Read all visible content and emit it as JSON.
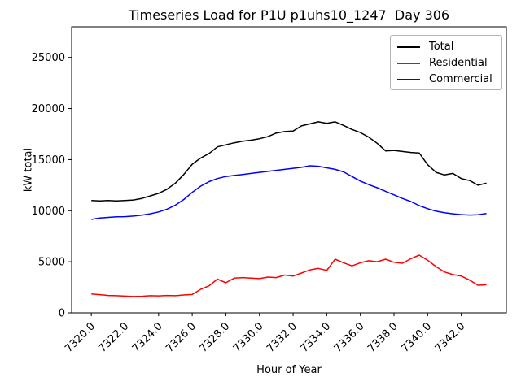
{
  "chart_data": {
    "type": "line",
    "title": "Timeseries Load for P1U p1uhs10_1247  Day 306",
    "xlabel": "Hour of Year",
    "ylabel": "kW total",
    "xlim": [
      7318.83,
      7344.68
    ],
    "ylim": [
      0,
      28000
    ],
    "grid": false,
    "legend_position": "upper right",
    "xticks": [
      {
        "value": 7320,
        "label": "7320.0"
      },
      {
        "value": 7322,
        "label": "7322.0"
      },
      {
        "value": 7324,
        "label": "7324.0"
      },
      {
        "value": 7326,
        "label": "7326.0"
      },
      {
        "value": 7328,
        "label": "7328.0"
      },
      {
        "value": 7330,
        "label": "7330.0"
      },
      {
        "value": 7332,
        "label": "7332.0"
      },
      {
        "value": 7334,
        "label": "7334.0"
      },
      {
        "value": 7336,
        "label": "7336.0"
      },
      {
        "value": 7338,
        "label": "7338.0"
      },
      {
        "value": 7340,
        "label": "7340.0"
      },
      {
        "value": 7342,
        "label": "7342.0"
      }
    ],
    "yticks": [
      {
        "value": 0,
        "label": "0"
      },
      {
        "value": 5000,
        "label": "5000"
      },
      {
        "value": 10000,
        "label": "10000"
      },
      {
        "value": 15000,
        "label": "15000"
      },
      {
        "value": 20000,
        "label": "20000"
      },
      {
        "value": 25000,
        "label": "25000"
      }
    ],
    "x": [
      7320.0,
      7320.5,
      7321.0,
      7321.5,
      7322.0,
      7322.5,
      7323.0,
      7323.5,
      7324.0,
      7324.5,
      7325.0,
      7325.5,
      7326.0,
      7326.5,
      7327.0,
      7327.5,
      7328.0,
      7328.5,
      7329.0,
      7329.5,
      7330.0,
      7330.5,
      7331.0,
      7331.5,
      7332.0,
      7332.5,
      7333.0,
      7333.5,
      7334.0,
      7334.5,
      7335.0,
      7335.5,
      7336.0,
      7336.5,
      7337.0,
      7337.5,
      7338.0,
      7338.5,
      7339.0,
      7339.5,
      7340.0,
      7340.5,
      7341.0,
      7341.5,
      7342.0,
      7342.5,
      7343.0,
      7343.5
    ],
    "series": [
      {
        "name": "Total",
        "color": "#000000",
        "values": [
          11000,
          10950,
          11000,
          10950,
          11000,
          11050,
          11200,
          11450,
          11700,
          12100,
          12700,
          13550,
          14550,
          15150,
          15600,
          16250,
          16450,
          16650,
          16800,
          16900,
          17050,
          17250,
          17600,
          17750,
          17800,
          18300,
          18500,
          18700,
          18550,
          18700,
          18350,
          17950,
          17650,
          17200,
          16600,
          15850,
          15900,
          15800,
          15700,
          15650,
          14500,
          13750,
          13500,
          13650,
          13150,
          12950,
          12500,
          12700
        ]
      },
      {
        "name": "Residential",
        "color": "#ff0000",
        "values": [
          1850,
          1780,
          1700,
          1680,
          1640,
          1600,
          1620,
          1680,
          1660,
          1700,
          1680,
          1750,
          1800,
          2300,
          2650,
          3300,
          2950,
          3400,
          3450,
          3400,
          3350,
          3500,
          3450,
          3700,
          3600,
          3900,
          4200,
          4350,
          4150,
          5250,
          4900,
          4600,
          4900,
          5100,
          5000,
          5250,
          4950,
          4850,
          5300,
          5650,
          5150,
          4530,
          4000,
          3750,
          3600,
          3200,
          2700,
          2750
        ]
      },
      {
        "name": "Commercial",
        "color": "#0000ff",
        "values": [
          9150,
          9280,
          9350,
          9400,
          9420,
          9470,
          9560,
          9700,
          9880,
          10150,
          10550,
          11100,
          11800,
          12400,
          12850,
          13150,
          13350,
          13450,
          13550,
          13650,
          13750,
          13850,
          13950,
          14050,
          14150,
          14250,
          14400,
          14350,
          14200,
          14050,
          13800,
          13350,
          12900,
          12550,
          12250,
          11900,
          11550,
          11200,
          10900,
          10500,
          10200,
          9950,
          9800,
          9700,
          9620,
          9580,
          9600,
          9720
        ]
      }
    ]
  }
}
